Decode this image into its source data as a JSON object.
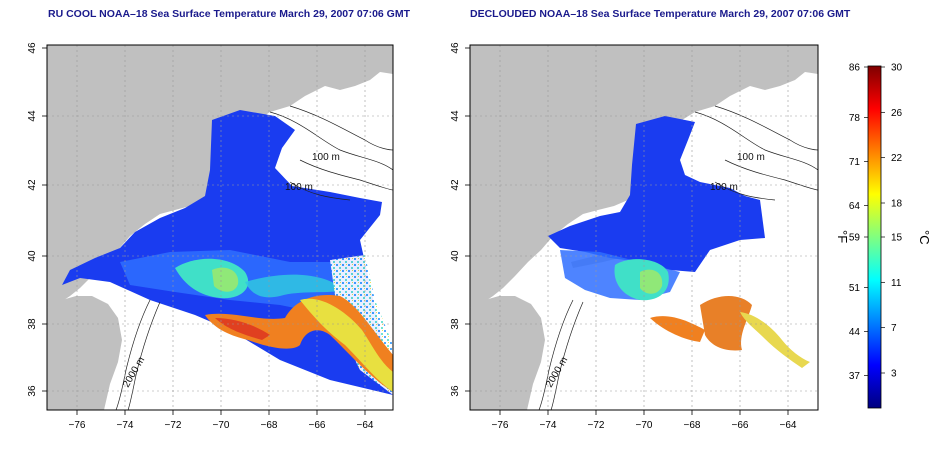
{
  "panels": [
    {
      "title": "RU COOL NOAA–18 Sea Surface Temperature March 29, 2007 07:06 GMT",
      "contour_labels": [
        "100 m",
        "100 m",
        "2000 m"
      ]
    },
    {
      "title": "DECLOUDED NOAA–18 Sea Surface Temperature March 29, 2007 07:06 GMT",
      "contour_labels": [
        "100 m",
        "100 m",
        "2000 m"
      ]
    }
  ],
  "axes": {
    "lon_ticks": [
      "−76",
      "−74",
      "−72",
      "−70",
      "−68",
      "−66",
      "−64"
    ],
    "lat_ticks": [
      "36",
      "38",
      "40",
      "42",
      "44",
      "46"
    ]
  },
  "colorbar": {
    "f_label": "°F",
    "c_label": "°C",
    "f_ticks": [
      "86",
      "78",
      "71",
      "64",
      "59",
      "51",
      "44",
      "37"
    ],
    "c_ticks": [
      "30",
      "26",
      "22",
      "18",
      "15",
      "11",
      "7",
      "3"
    ],
    "colors": [
      "#00007f",
      "#0000ff",
      "#0080ff",
      "#00ffff",
      "#80ff80",
      "#ffff00",
      "#ff8000",
      "#ff0000",
      "#7f0000"
    ]
  },
  "colors": {
    "land": "#c0c0c0",
    "title": "#1a1a8c"
  }
}
